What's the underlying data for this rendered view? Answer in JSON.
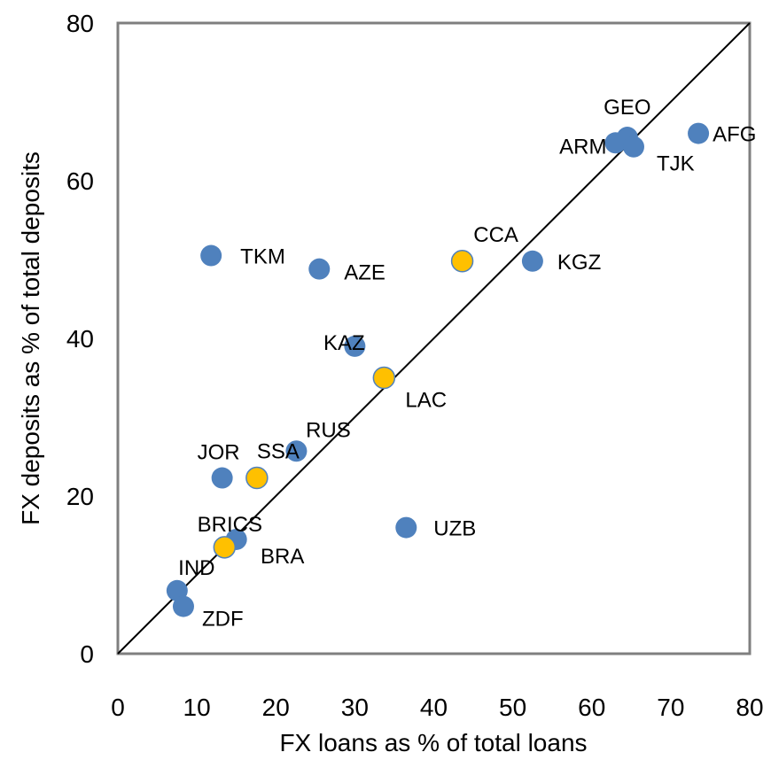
{
  "chart_data": {
    "type": "scatter",
    "title": "",
    "xlabel": "FX loans as % of total loans",
    "ylabel": "FX deposits as % of total deposits",
    "xlim": [
      0,
      80
    ],
    "ylim": [
      0,
      80
    ],
    "x_ticks": [
      "0",
      "10",
      "20",
      "30",
      "40",
      "50",
      "60",
      "70",
      "80"
    ],
    "y_ticks": [
      "0",
      "20",
      "40",
      "60",
      "80"
    ],
    "grid": false,
    "reference_line": "45-degree line y = x",
    "colors": {
      "country": "#4f81bd",
      "region": "#ffc000"
    },
    "points": [
      {
        "label": "AFG",
        "x": 73.5,
        "y": 66.0,
        "group": "country"
      },
      {
        "label": "GEO",
        "x": 64.5,
        "y": 65.5,
        "group": "country"
      },
      {
        "label": "ARM",
        "x": 63.0,
        "y": 64.8,
        "group": "country"
      },
      {
        "label": "TJK",
        "x": 65.3,
        "y": 64.3,
        "group": "country"
      },
      {
        "label": "KGZ",
        "x": 52.5,
        "y": 49.8,
        "group": "country"
      },
      {
        "label": "CCA",
        "x": 43.6,
        "y": 49.8,
        "group": "region"
      },
      {
        "label": "TKM",
        "x": 11.8,
        "y": 50.5,
        "group": "country"
      },
      {
        "label": "AZE",
        "x": 25.5,
        "y": 48.8,
        "group": "country"
      },
      {
        "label": "KAZ",
        "x": 30.0,
        "y": 39.0,
        "group": "country"
      },
      {
        "label": "LAC",
        "x": 33.7,
        "y": 35.0,
        "group": "region"
      },
      {
        "label": "RUS",
        "x": 22.6,
        "y": 25.7,
        "group": "country"
      },
      {
        "label": "JOR",
        "x": 13.2,
        "y": 22.3,
        "group": "country"
      },
      {
        "label": "SSA",
        "x": 17.6,
        "y": 22.3,
        "group": "region"
      },
      {
        "label": "UZB",
        "x": 36.5,
        "y": 16.0,
        "group": "country"
      },
      {
        "label": "BRA",
        "x": 15.0,
        "y": 14.5,
        "group": "country"
      },
      {
        "label": "BRICS",
        "x": 13.5,
        "y": 13.5,
        "group": "region"
      },
      {
        "label": "IND",
        "x": 7.5,
        "y": 8.0,
        "group": "country"
      },
      {
        "label": "ZDF",
        "x": 8.3,
        "y": 6.0,
        "group": "country"
      }
    ]
  }
}
